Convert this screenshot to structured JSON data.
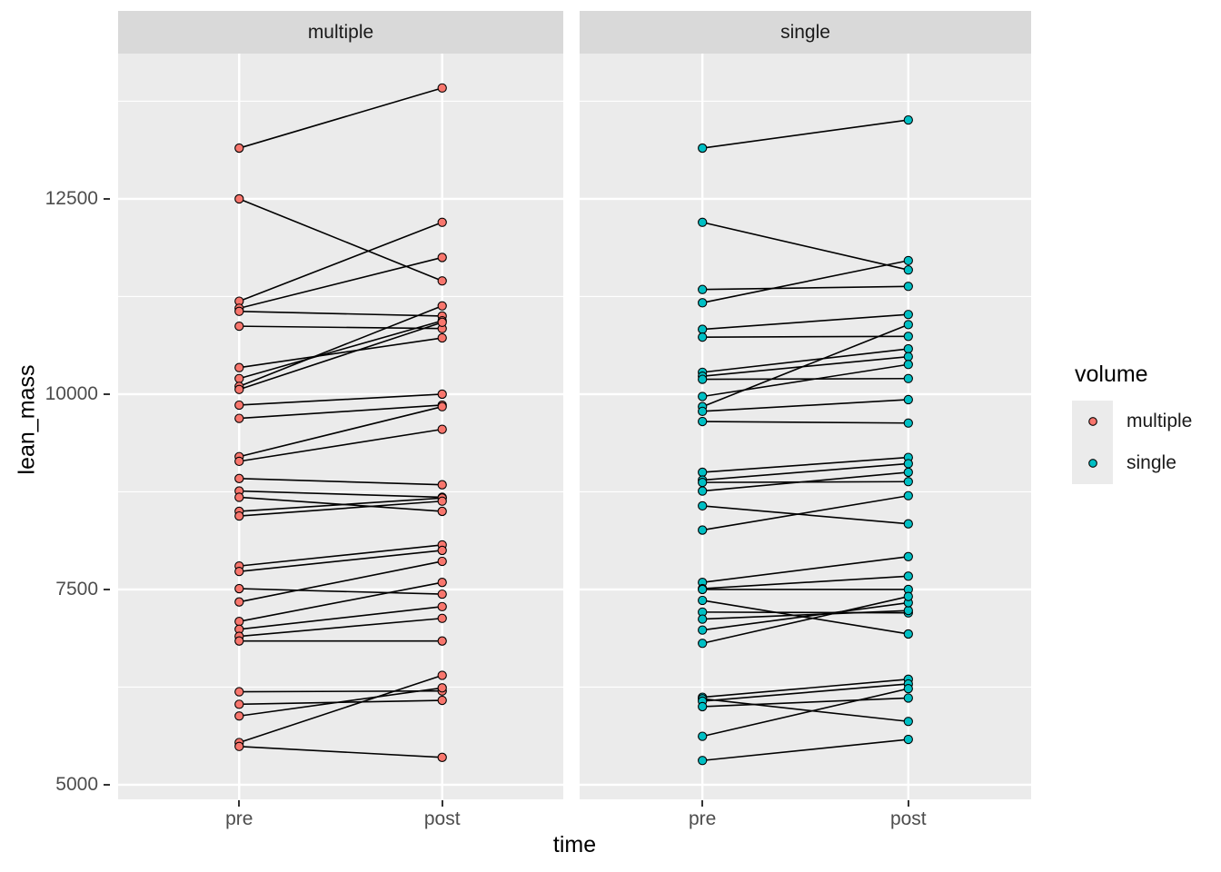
{
  "chart_data": {
    "type": "line",
    "subtype": "paired-slopegraph-faceted",
    "title": "",
    "xlabel": "time",
    "ylabel": "lean_mass",
    "x_categories": [
      "pre",
      "post"
    ],
    "y_ticks": [
      5000,
      7500,
      10000,
      12500
    ],
    "y_minor_ticks": [
      6250,
      8750,
      11250,
      13750
    ],
    "ylim": [
      4813,
      14360
    ],
    "grid": true,
    "legend": {
      "title": "volume",
      "position": "right",
      "items": [
        {
          "label": "multiple",
          "color": "#F8766D"
        },
        {
          "label": "single",
          "color": "#00BFC4"
        }
      ]
    },
    "facets": [
      {
        "label": "multiple",
        "color": "#F8766D",
        "pairs": [
          [
            13150,
            13920
          ],
          [
            12500,
            11450
          ],
          [
            11190,
            12200
          ],
          [
            11100,
            11750
          ],
          [
            11060,
            11000
          ],
          [
            10870,
            10840
          ],
          [
            10340,
            10720
          ],
          [
            10200,
            10940
          ],
          [
            10100,
            11130
          ],
          [
            10060,
            10920
          ],
          [
            9860,
            10000
          ],
          [
            9690,
            9860
          ],
          [
            9200,
            9840
          ],
          [
            9140,
            9550
          ],
          [
            8920,
            8840
          ],
          [
            8760,
            8680
          ],
          [
            8680,
            8500
          ],
          [
            8500,
            8670
          ],
          [
            8440,
            8630
          ],
          [
            7800,
            8070
          ],
          [
            7730,
            8000
          ],
          [
            7510,
            7440
          ],
          [
            7340,
            7860
          ],
          [
            7090,
            7590
          ],
          [
            6990,
            7280
          ],
          [
            6900,
            7130
          ],
          [
            6840,
            6840
          ],
          [
            6190,
            6200
          ],
          [
            6030,
            6080
          ],
          [
            5880,
            6240
          ],
          [
            5540,
            6400
          ],
          [
            5490,
            5350
          ]
        ]
      },
      {
        "label": "single",
        "color": "#00BFC4",
        "pairs": [
          [
            13150,
            13510
          ],
          [
            12200,
            11590
          ],
          [
            11340,
            11380
          ],
          [
            11170,
            11710
          ],
          [
            10830,
            11020
          ],
          [
            10730,
            10740
          ],
          [
            10280,
            10580
          ],
          [
            10230,
            10480
          ],
          [
            10190,
            10200
          ],
          [
            9970,
            10380
          ],
          [
            9840,
            10890
          ],
          [
            9780,
            9930
          ],
          [
            9650,
            9630
          ],
          [
            9000,
            9190
          ],
          [
            8900,
            9110
          ],
          [
            8870,
            8880
          ],
          [
            8760,
            9000
          ],
          [
            8570,
            8340
          ],
          [
            8260,
            8700
          ],
          [
            7590,
            7920
          ],
          [
            7510,
            7670
          ],
          [
            7500,
            7500
          ],
          [
            7360,
            6930
          ],
          [
            7210,
            7200
          ],
          [
            7120,
            7230
          ],
          [
            6980,
            7330
          ],
          [
            6810,
            7410
          ],
          [
            6120,
            6350
          ],
          [
            6100,
            5810
          ],
          [
            6070,
            6290
          ],
          [
            6000,
            6110
          ],
          [
            5620,
            6230
          ],
          [
            5310,
            5580
          ]
        ]
      }
    ]
  },
  "colors": {
    "background": "#FFFFFF",
    "panel_background": "#EBEBEB",
    "strip_background": "#D9D9D9",
    "gridline_major": "#FFFFFF",
    "gridline_minor": "#FFFFFF",
    "tick_label": "#4D4D4D",
    "tick_mark": "#333333",
    "axis_title": "#000000",
    "strip_text": "#1A1A1A",
    "line": "#000000",
    "point_stroke": "#000000"
  }
}
